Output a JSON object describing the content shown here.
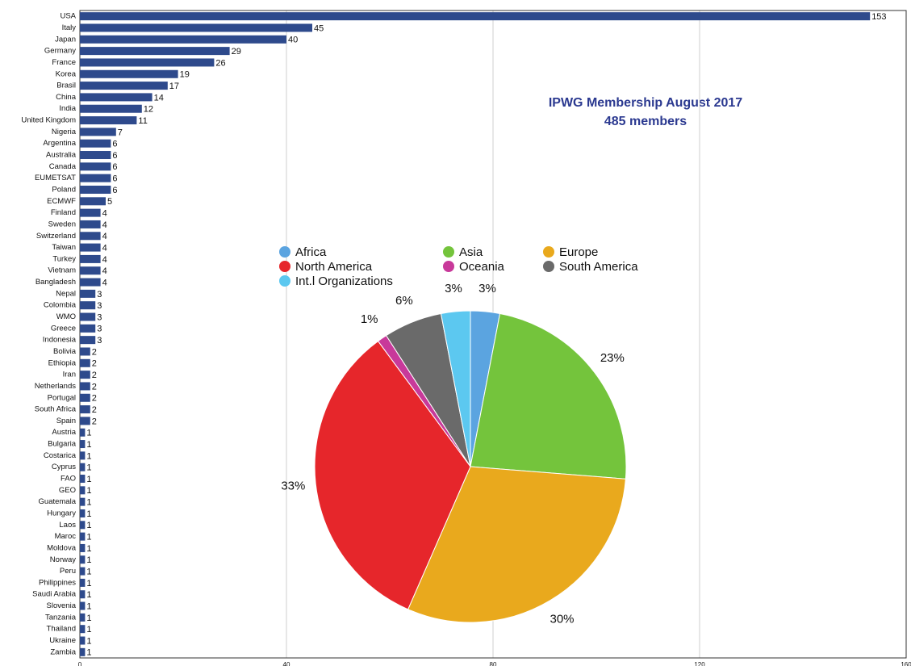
{
  "chart_data": [
    {
      "type": "barh",
      "categories": [
        "USA",
        "Italy",
        "Japan",
        "Germany",
        "France",
        "Korea",
        "Brasil",
        "China",
        "India",
        "United Kingdom",
        "Nigeria",
        "Argentina",
        "Australia",
        "Canada",
        "EUMETSAT",
        "Poland",
        "ECMWF",
        "Finland",
        "Sweden",
        "Switzerland",
        "Taiwan",
        "Turkey",
        "Vietnam",
        "Bangladesh",
        "Nepal",
        "Colombia",
        "WMO",
        "Greece",
        "Indonesia",
        "Bolivia",
        "Ethiopia",
        "Iran",
        "Netherlands",
        "Portugal",
        "South Africa",
        "Spain",
        "Austria",
        "Bulgaria",
        "Costarica",
        "Cyprus",
        "FAO",
        "GEO",
        "Guatemala",
        "Hungary",
        "Laos",
        "Maroc",
        "Moldova",
        "Norway",
        "Peru",
        "Philippines",
        "Saudi Arabia",
        "Slovenia",
        "Tanzania",
        "Thailand",
        "Ukraine",
        "Zambia"
      ],
      "values": [
        153,
        45,
        40,
        29,
        26,
        19,
        17,
        14,
        12,
        11,
        7,
        6,
        6,
        6,
        6,
        6,
        5,
        4,
        4,
        4,
        4,
        4,
        4,
        4,
        3,
        3,
        3,
        3,
        3,
        2,
        2,
        2,
        2,
        2,
        2,
        2,
        1,
        1,
        1,
        1,
        1,
        1,
        1,
        1,
        1,
        1,
        1,
        1,
        1,
        1,
        1,
        1,
        1,
        1,
        1,
        1
      ],
      "color": "#2e4a8c",
      "xlim": [
        0,
        160
      ],
      "xticks": [
        0,
        40,
        80,
        120,
        160
      ],
      "grid": true
    },
    {
      "type": "pie",
      "title": "IPWG Membership August 2017",
      "subtitle": "485 members",
      "categories": [
        "Africa",
        "Asia",
        "Europe",
        "North America",
        "Oceania",
        "South America",
        "Int.l Organizations"
      ],
      "values": [
        3,
        23,
        30,
        33,
        1,
        6,
        3
      ],
      "value_labels": [
        "3%",
        "23%",
        "30%",
        "33%",
        "1%",
        "6%",
        "3%"
      ],
      "colors": [
        "#5ba4e0",
        "#74c43c",
        "#e9a91d",
        "#e6262b",
        "#c8399a",
        "#6a6a6a",
        "#5cc8f0"
      ],
      "legend": "top"
    }
  ]
}
